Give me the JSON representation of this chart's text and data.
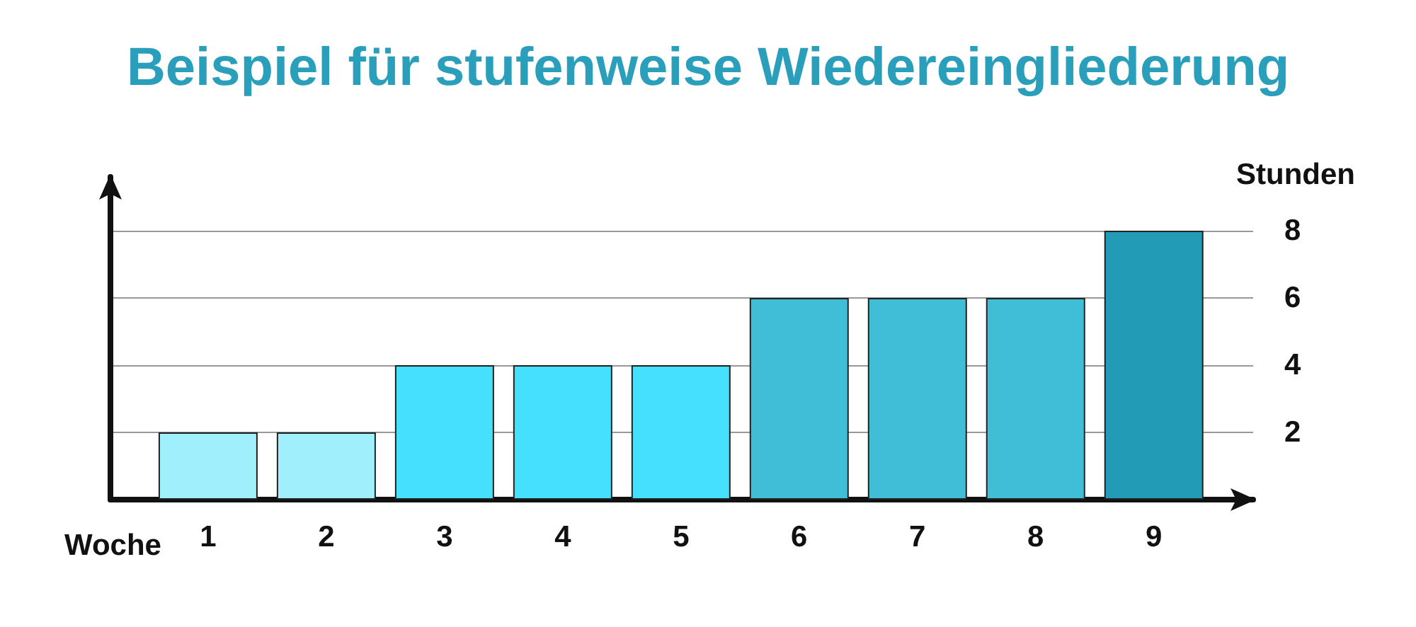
{
  "chart_data": {
    "type": "bar",
    "title": "Beispiel für stufenweise Wiedereingliederung",
    "xlabel": "Woche",
    "ylabel": "Stunden",
    "categories": [
      "1",
      "2",
      "3",
      "4",
      "5",
      "6",
      "7",
      "8",
      "9"
    ],
    "values": [
      2,
      2,
      4,
      4,
      4,
      6,
      6,
      6,
      8
    ],
    "colors": [
      "#a0effc",
      "#a0effc",
      "#45e0fd",
      "#45e0fd",
      "#45e0fd",
      "#40bed8",
      "#40bed8",
      "#40bed8",
      "#229bb6"
    ],
    "ylim": [
      0,
      9.6
    ],
    "yticks": [
      2,
      4,
      6,
      8
    ],
    "grid": "y"
  }
}
